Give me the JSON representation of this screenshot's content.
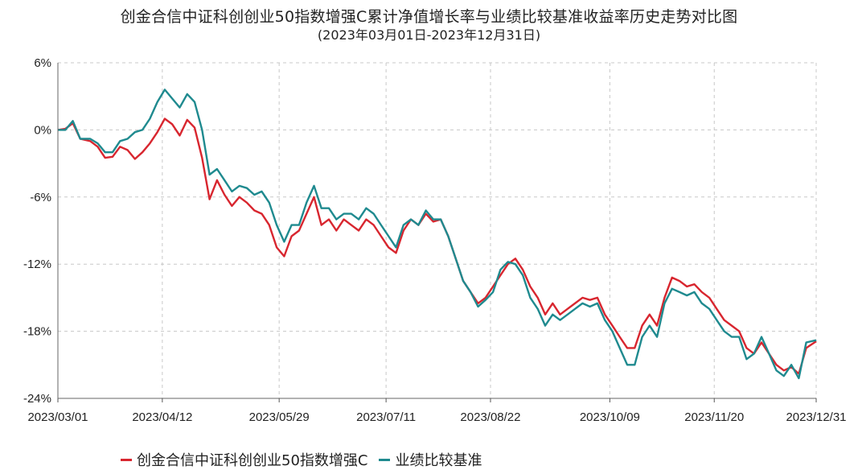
{
  "chart_data": {
    "type": "line",
    "title": "创金合信中证科创创业50指数增强C累计净值增长率与业绩比较基准收益率历史走势对比图",
    "subtitle": "(2023年03月01日-2023年12月31日)",
    "x_ticks": [
      "2023/03/01",
      "2023/04/12",
      "2023/05/29",
      "2023/07/11",
      "2023/08/22",
      "2023/10/09",
      "2023/11/20",
      "2023/12/31"
    ],
    "y_ticks": [
      "6%",
      "0%",
      "-6%",
      "-12%",
      "-18%",
      "-24%"
    ],
    "ylim": [
      -24,
      6
    ],
    "grid": true,
    "legend_position": "bottom-left",
    "series": [
      {
        "name": "创金合信中证科创创业50指数增强C",
        "color": "#d8262f",
        "points": [
          [
            "2023/03/01",
            0.0
          ],
          [
            "2023/03/04",
            0.1
          ],
          [
            "2023/03/07",
            0.6
          ],
          [
            "2023/03/10",
            -0.8
          ],
          [
            "2023/03/14",
            -1.0
          ],
          [
            "2023/03/17",
            -1.5
          ],
          [
            "2023/03/20",
            -2.5
          ],
          [
            "2023/03/23",
            -2.4
          ],
          [
            "2023/03/26",
            -1.5
          ],
          [
            "2023/03/29",
            -1.8
          ],
          [
            "2023/04/01",
            -2.6
          ],
          [
            "2023/04/04",
            -2.0
          ],
          [
            "2023/04/07",
            -1.2
          ],
          [
            "2023/04/10",
            -0.2
          ],
          [
            "2023/04/13",
            1.0
          ],
          [
            "2023/04/16",
            0.5
          ],
          [
            "2023/04/19",
            -0.5
          ],
          [
            "2023/04/22",
            0.9
          ],
          [
            "2023/04/25",
            0.2
          ],
          [
            "2023/04/28",
            -2.5
          ],
          [
            "2023/05/01",
            -6.2
          ],
          [
            "2023/05/04",
            -4.5
          ],
          [
            "2023/05/07",
            -5.8
          ],
          [
            "2023/05/10",
            -6.8
          ],
          [
            "2023/05/13",
            -6.0
          ],
          [
            "2023/05/16",
            -6.5
          ],
          [
            "2023/05/19",
            -7.2
          ],
          [
            "2023/05/22",
            -7.5
          ],
          [
            "2023/05/25",
            -8.5
          ],
          [
            "2023/05/28",
            -10.5
          ],
          [
            "2023/05/31",
            -11.3
          ],
          [
            "2023/06/03",
            -9.5
          ],
          [
            "2023/06/06",
            -9.0
          ],
          [
            "2023/06/09",
            -7.5
          ],
          [
            "2023/06/12",
            -6.0
          ],
          [
            "2023/06/15",
            -8.5
          ],
          [
            "2023/06/18",
            -8.0
          ],
          [
            "2023/06/21",
            -9.0
          ],
          [
            "2023/06/24",
            -8.0
          ],
          [
            "2023/06/27",
            -8.5
          ],
          [
            "2023/06/30",
            -9.0
          ],
          [
            "2023/07/03",
            -8.0
          ],
          [
            "2023/07/06",
            -8.5
          ],
          [
            "2023/07/09",
            -9.5
          ],
          [
            "2023/07/12",
            -10.5
          ],
          [
            "2023/07/15",
            -11.0
          ],
          [
            "2023/07/18",
            -9.0
          ],
          [
            "2023/07/21",
            -8.0
          ],
          [
            "2023/07/24",
            -8.5
          ],
          [
            "2023/07/27",
            -7.5
          ],
          [
            "2023/07/30",
            -8.2
          ],
          [
            "2023/08/02",
            -8.0
          ],
          [
            "2023/08/05",
            -9.5
          ],
          [
            "2023/08/08",
            -11.5
          ],
          [
            "2023/08/11",
            -13.5
          ],
          [
            "2023/08/14",
            -14.5
          ],
          [
            "2023/08/17",
            -15.5
          ],
          [
            "2023/08/20",
            -15.0
          ],
          [
            "2023/08/23",
            -14.0
          ],
          [
            "2023/08/26",
            -13.0
          ],
          [
            "2023/08/29",
            -12.0
          ],
          [
            "2023/09/01",
            -11.5
          ],
          [
            "2023/09/04",
            -12.5
          ],
          [
            "2023/09/07",
            -14.0
          ],
          [
            "2023/09/10",
            -15.0
          ],
          [
            "2023/09/13",
            -16.5
          ],
          [
            "2023/09/16",
            -15.5
          ],
          [
            "2023/09/19",
            -16.5
          ],
          [
            "2023/09/22",
            -16.0
          ],
          [
            "2023/09/25",
            -15.5
          ],
          [
            "2023/09/28",
            -15.0
          ],
          [
            "2023/10/01",
            -15.2
          ],
          [
            "2023/10/04",
            -15.0
          ],
          [
            "2023/10/07",
            -16.5
          ],
          [
            "2023/10/10",
            -17.5
          ],
          [
            "2023/10/13",
            -18.5
          ],
          [
            "2023/10/16",
            -19.5
          ],
          [
            "2023/10/19",
            -19.5
          ],
          [
            "2023/10/22",
            -17.5
          ],
          [
            "2023/10/25",
            -16.5
          ],
          [
            "2023/10/28",
            -17.5
          ],
          [
            "2023/10/31",
            -15.0
          ],
          [
            "2023/11/03",
            -13.2
          ],
          [
            "2023/11/06",
            -13.5
          ],
          [
            "2023/11/09",
            -14.0
          ],
          [
            "2023/11/12",
            -13.8
          ],
          [
            "2023/11/15",
            -14.5
          ],
          [
            "2023/11/18",
            -15.0
          ],
          [
            "2023/11/21",
            -16.0
          ],
          [
            "2023/11/24",
            -17.0
          ],
          [
            "2023/11/27",
            -17.5
          ],
          [
            "2023/11/30",
            -18.0
          ],
          [
            "2023/12/03",
            -19.5
          ],
          [
            "2023/12/06",
            -20.0
          ],
          [
            "2023/12/09",
            -19.0
          ],
          [
            "2023/12/12",
            -20.0
          ],
          [
            "2023/12/15",
            -21.0
          ],
          [
            "2023/12/18",
            -21.5
          ],
          [
            "2023/12/21",
            -21.2
          ],
          [
            "2023/12/24",
            -21.8
          ],
          [
            "2023/12/27",
            -19.5
          ],
          [
            "2023/12/31",
            -18.9
          ]
        ]
      },
      {
        "name": "业绩比较基准",
        "color": "#1f8a8f",
        "points": [
          [
            "2023/03/01",
            0.0
          ],
          [
            "2023/03/04",
            0.0
          ],
          [
            "2023/03/07",
            0.8
          ],
          [
            "2023/03/10",
            -0.8
          ],
          [
            "2023/03/14",
            -0.8
          ],
          [
            "2023/03/17",
            -1.2
          ],
          [
            "2023/03/20",
            -2.0
          ],
          [
            "2023/03/23",
            -2.0
          ],
          [
            "2023/03/26",
            -1.0
          ],
          [
            "2023/03/29",
            -0.8
          ],
          [
            "2023/04/01",
            -0.2
          ],
          [
            "2023/04/04",
            0.0
          ],
          [
            "2023/04/07",
            1.0
          ],
          [
            "2023/04/10",
            2.5
          ],
          [
            "2023/04/13",
            3.6
          ],
          [
            "2023/04/16",
            2.8
          ],
          [
            "2023/04/19",
            2.0
          ],
          [
            "2023/04/22",
            3.2
          ],
          [
            "2023/04/25",
            2.5
          ],
          [
            "2023/04/28",
            0.0
          ],
          [
            "2023/05/01",
            -4.0
          ],
          [
            "2023/05/04",
            -3.5
          ],
          [
            "2023/05/07",
            -4.5
          ],
          [
            "2023/05/10",
            -5.5
          ],
          [
            "2023/05/13",
            -5.0
          ],
          [
            "2023/05/16",
            -5.2
          ],
          [
            "2023/05/19",
            -5.8
          ],
          [
            "2023/05/22",
            -5.5
          ],
          [
            "2023/05/25",
            -6.5
          ],
          [
            "2023/05/28",
            -8.5
          ],
          [
            "2023/05/31",
            -10.0
          ],
          [
            "2023/06/03",
            -8.5
          ],
          [
            "2023/06/06",
            -8.5
          ],
          [
            "2023/06/09",
            -6.5
          ],
          [
            "2023/06/12",
            -5.0
          ],
          [
            "2023/06/15",
            -7.0
          ],
          [
            "2023/06/18",
            -7.0
          ],
          [
            "2023/06/21",
            -8.0
          ],
          [
            "2023/06/24",
            -7.5
          ],
          [
            "2023/06/27",
            -7.5
          ],
          [
            "2023/06/30",
            -8.0
          ],
          [
            "2023/07/03",
            -7.0
          ],
          [
            "2023/07/06",
            -7.5
          ],
          [
            "2023/07/09",
            -8.5
          ],
          [
            "2023/07/12",
            -9.5
          ],
          [
            "2023/07/15",
            -10.5
          ],
          [
            "2023/07/18",
            -8.5
          ],
          [
            "2023/07/21",
            -8.0
          ],
          [
            "2023/07/24",
            -8.5
          ],
          [
            "2023/07/27",
            -7.2
          ],
          [
            "2023/07/30",
            -8.0
          ],
          [
            "2023/08/02",
            -8.0
          ],
          [
            "2023/08/05",
            -9.5
          ],
          [
            "2023/08/08",
            -11.5
          ],
          [
            "2023/08/11",
            -13.5
          ],
          [
            "2023/08/14",
            -14.5
          ],
          [
            "2023/08/17",
            -15.8
          ],
          [
            "2023/08/20",
            -15.2
          ],
          [
            "2023/08/23",
            -14.5
          ],
          [
            "2023/08/26",
            -12.5
          ],
          [
            "2023/08/29",
            -11.8
          ],
          [
            "2023/09/01",
            -12.0
          ],
          [
            "2023/09/04",
            -13.0
          ],
          [
            "2023/09/07",
            -15.0
          ],
          [
            "2023/09/10",
            -16.0
          ],
          [
            "2023/09/13",
            -17.5
          ],
          [
            "2023/09/16",
            -16.5
          ],
          [
            "2023/09/19",
            -17.0
          ],
          [
            "2023/09/22",
            -16.5
          ],
          [
            "2023/09/25",
            -16.0
          ],
          [
            "2023/09/28",
            -15.5
          ],
          [
            "2023/10/01",
            -15.8
          ],
          [
            "2023/10/04",
            -15.5
          ],
          [
            "2023/10/07",
            -17.0
          ],
          [
            "2023/10/10",
            -18.0
          ],
          [
            "2023/10/13",
            -19.5
          ],
          [
            "2023/10/16",
            -21.0
          ],
          [
            "2023/10/19",
            -21.0
          ],
          [
            "2023/10/22",
            -18.5
          ],
          [
            "2023/10/25",
            -17.5
          ],
          [
            "2023/10/28",
            -18.5
          ],
          [
            "2023/10/31",
            -15.5
          ],
          [
            "2023/11/03",
            -14.2
          ],
          [
            "2023/11/06",
            -14.5
          ],
          [
            "2023/11/09",
            -14.8
          ],
          [
            "2023/11/12",
            -14.5
          ],
          [
            "2023/11/15",
            -15.5
          ],
          [
            "2023/11/18",
            -16.0
          ],
          [
            "2023/11/21",
            -17.0
          ],
          [
            "2023/11/24",
            -18.0
          ],
          [
            "2023/11/27",
            -18.5
          ],
          [
            "2023/11/30",
            -18.5
          ],
          [
            "2023/12/03",
            -20.5
          ],
          [
            "2023/12/06",
            -20.0
          ],
          [
            "2023/12/09",
            -18.5
          ],
          [
            "2023/12/12",
            -20.0
          ],
          [
            "2023/12/15",
            -21.5
          ],
          [
            "2023/12/18",
            -22.0
          ],
          [
            "2023/12/21",
            -21.0
          ],
          [
            "2023/12/24",
            -22.2
          ],
          [
            "2023/12/27",
            -19.0
          ],
          [
            "2023/12/31",
            -18.8
          ]
        ]
      }
    ]
  }
}
